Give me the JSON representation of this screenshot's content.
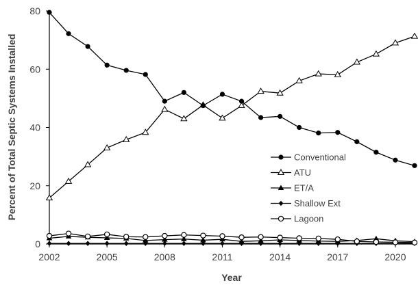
{
  "chart_data": {
    "type": "line",
    "xlabel": "Year",
    "ylabel": "Percent of Total Septic Systems Installed",
    "xlim": [
      2002,
      2021
    ],
    "ylim": [
      0,
      80
    ],
    "x_ticks": [
      2002,
      2005,
      2008,
      2011,
      2014,
      2017,
      2020
    ],
    "y_ticks": [
      0,
      20,
      40,
      60,
      80
    ],
    "x_tick_labels": [
      "2002",
      "2005",
      "2008",
      "2011",
      "2014",
      "2017",
      "2020"
    ],
    "y_tick_labels": [
      "0",
      "20",
      "40",
      "60",
      "80"
    ],
    "grid": false,
    "legend_position": "right",
    "x": [
      2002,
      2003,
      2004,
      2005,
      2006,
      2007,
      2008,
      2009,
      2010,
      2011,
      2012,
      2013,
      2014,
      2015,
      2016,
      2017,
      2018,
      2019,
      2020,
      2021
    ],
    "series": [
      {
        "name": "Conventional",
        "marker": "filled-circle",
        "values": [
          79.5,
          72.2,
          67.8,
          61.4,
          59.6,
          58.2,
          49.0,
          52.0,
          47.5,
          51.4,
          49.0,
          43.4,
          43.8,
          40.0,
          38.1,
          38.3,
          35.1,
          31.5,
          28.8,
          26.9
        ]
      },
      {
        "name": "ATU",
        "marker": "open-triangle",
        "values": [
          15.8,
          21.5,
          27.2,
          33.0,
          35.8,
          38.3,
          46.2,
          43.0,
          47.7,
          43.2,
          47.5,
          52.4,
          51.8,
          56.0,
          58.4,
          58.1,
          62.4,
          65.2,
          69.0,
          71.3
        ]
      },
      {
        "name": "ET/A",
        "marker": "filled-triangle",
        "values": [
          2.0,
          2.6,
          2.3,
          2.1,
          1.9,
          1.2,
          1.5,
          1.7,
          1.3,
          1.6,
          0.9,
          1.1,
          1.4,
          1.2,
          1.0,
          0.9,
          1.2,
          1.8,
          1.1,
          0.8
        ]
      },
      {
        "name": "Shallow Ext",
        "marker": "filled-diamond",
        "values": [
          0.2,
          0.2,
          0.2,
          0.2,
          0.2,
          0.2,
          0.2,
          0.2,
          0.2,
          0.2,
          0.2,
          0.2,
          0.2,
          0.2,
          0.2,
          0.2,
          0.2,
          0.2,
          0.2,
          0.2
        ]
      },
      {
        "name": "Lagoon",
        "marker": "open-circle",
        "values": [
          2.8,
          3.6,
          2.6,
          3.3,
          2.5,
          2.4,
          2.8,
          3.1,
          2.9,
          2.7,
          2.3,
          2.4,
          2.2,
          2.0,
          1.9,
          1.6,
          0.9,
          0.7,
          0.6,
          0.5
        ]
      }
    ]
  }
}
